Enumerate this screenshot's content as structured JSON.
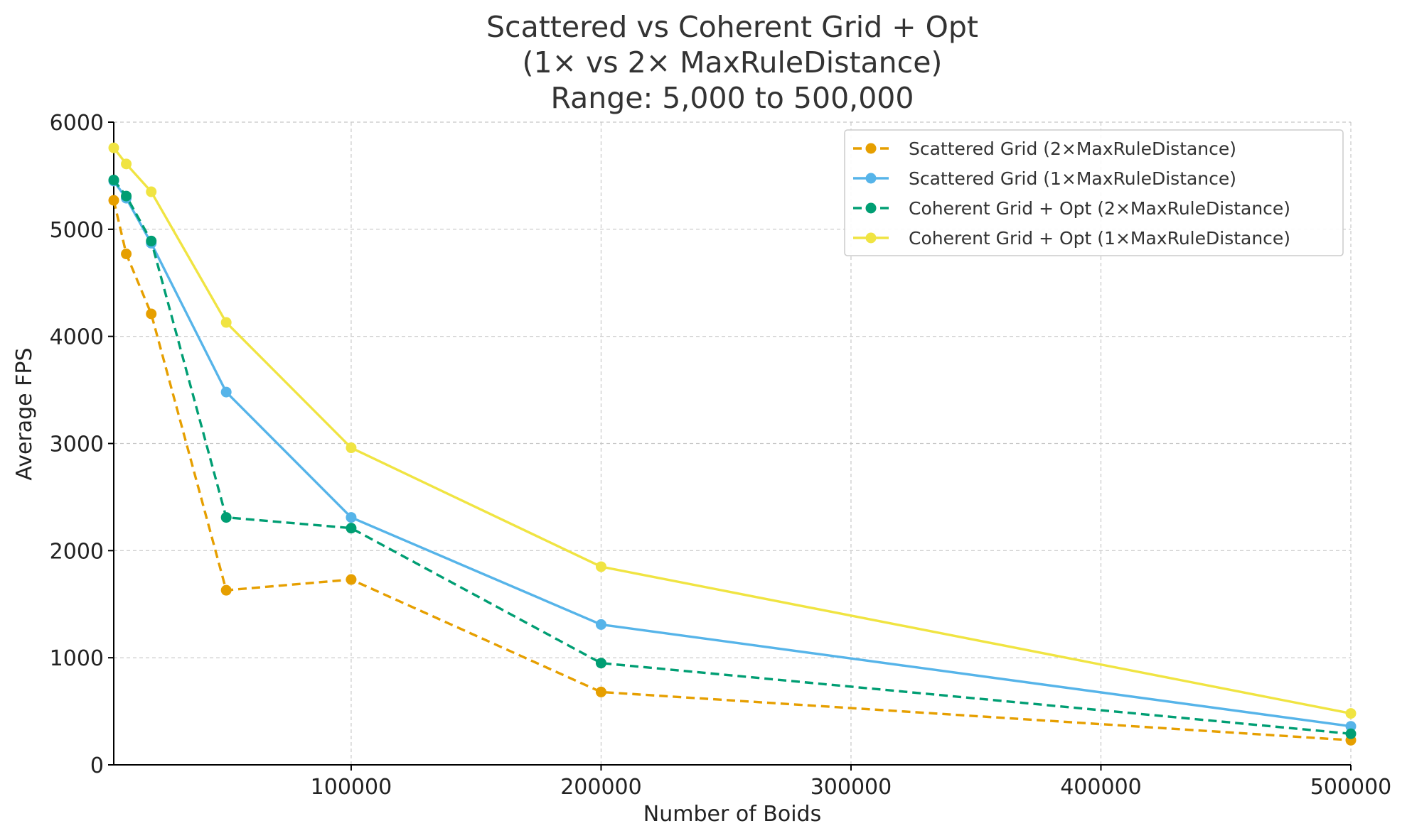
{
  "chart_data": {
    "type": "line",
    "title": [
      "Scattered vs Coherent Grid + Opt",
      "(1× vs 2× MaxRuleDistance)",
      "Range: 5,000 to 500,000"
    ],
    "xlabel": "Number of Boids",
    "ylabel": "Average FPS",
    "xlim": [
      5000,
      500000
    ],
    "ylim": [
      0,
      6000
    ],
    "x_ticks": [
      100000,
      200000,
      300000,
      400000,
      500000
    ],
    "y_ticks": [
      0,
      1000,
      2000,
      3000,
      4000,
      5000,
      6000
    ],
    "grid": true,
    "legend_position": "top-right",
    "x": [
      5000,
      10000,
      20000,
      50000,
      100000,
      200000,
      500000
    ],
    "series": [
      {
        "name": "Scattered Grid (2×MaxRuleDistance)",
        "color": "#E69F00",
        "dashed": true,
        "values": [
          5270,
          4770,
          4210,
          1630,
          1730,
          680,
          230
        ]
      },
      {
        "name": "Scattered Grid (1×MaxRuleDistance)",
        "color": "#56B4E9",
        "dashed": false,
        "values": [
          5450,
          5290,
          4870,
          3480,
          2310,
          1310,
          360
        ]
      },
      {
        "name": "Coherent Grid + Opt (2×MaxRuleDistance)",
        "color": "#009E73",
        "dashed": true,
        "values": [
          5460,
          5310,
          4890,
          2310,
          2210,
          950,
          290
        ]
      },
      {
        "name": "Coherent Grid + Opt (1×MaxRuleDistance)",
        "color": "#F0E442",
        "dashed": false,
        "values": [
          5760,
          5610,
          5350,
          4130,
          2960,
          1850,
          480
        ]
      }
    ]
  }
}
